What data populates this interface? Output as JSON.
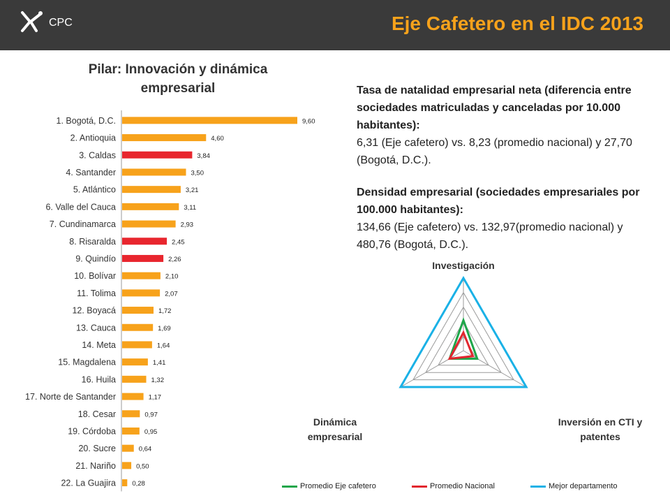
{
  "header": {
    "logo_text": "CPC",
    "title": "Eje Cafetero en el IDC 2013"
  },
  "colors": {
    "header_bg": "#3a3a3a",
    "accent": "#f7a21b",
    "bar_default": "#f7a21b",
    "bar_highlight": "#e8262e",
    "eje": "#1fa64a",
    "nacional": "#e2262e",
    "mejor": "#1ab1e6"
  },
  "info": {
    "natalidad_heading": "Tasa de natalidad empresarial neta (diferencia entre sociedades matriculadas y canceladas por 10.000 habitantes):",
    "natalidad_text": "6,31 (Eje cafetero) vs. 8,23 (promedio nacional) y 27,70 (Bogotá, D.C.).",
    "densidad_heading": "Densidad empresarial (sociedades empresariales por 100.000 habitantes):",
    "densidad_text": "134,66 (Eje cafetero) vs. 132,97(promedio nacional) y 480,76 (Bogotá, D.C.)."
  },
  "chart_data": [
    {
      "type": "bar",
      "orientation": "horizontal",
      "title_line1": "Pilar: Innovación y dinámica",
      "title_line2": "empresarial",
      "categories": [
        "1. Bogotá, D.C.",
        "2. Antioquia",
        "3. Caldas",
        "4. Santander",
        "5. Atlántico",
        "6. Valle del Cauca",
        "7. Cundinamarca",
        "8. Risaralda",
        "9. Quindío",
        "10. Bolívar",
        "11. Tolima",
        "12. Boyacá",
        "13. Cauca",
        "14. Meta",
        "15. Magdalena",
        "16. Huila",
        "17. Norte de Santander",
        "18. Cesar",
        "19. Córdoba",
        "20. Sucre",
        "21. Nariño",
        "22. La Guajira"
      ],
      "values": [
        9.6,
        4.6,
        3.84,
        3.5,
        3.21,
        3.11,
        2.93,
        2.45,
        2.26,
        2.1,
        2.07,
        1.72,
        1.69,
        1.64,
        1.41,
        1.32,
        1.17,
        0.97,
        0.95,
        0.64,
        0.5,
        0.28
      ],
      "labels": [
        "9,60",
        "4,60",
        "3,84",
        "3,50",
        "3,21",
        "3,11",
        "2,93",
        "2,45",
        "2,26",
        "2,10",
        "2,07",
        "1,72",
        "1,69",
        "1,64",
        "1,41",
        "1,32",
        "1,17",
        "0,97",
        "0,95",
        "0,64",
        "0,50",
        "0,28"
      ],
      "highlighted": [
        false,
        false,
        true,
        false,
        false,
        false,
        false,
        true,
        true,
        false,
        false,
        false,
        false,
        false,
        false,
        false,
        false,
        false,
        false,
        false,
        false,
        false
      ],
      "xlim": [
        0,
        10
      ]
    },
    {
      "type": "radar",
      "axes": [
        "Investigación",
        "Inversión en CTI y patentes",
        "Dinámica empresarial"
      ],
      "axis_label_lines": [
        [
          "Investigación"
        ],
        [
          "Inversión en CTI y",
          "patentes"
        ],
        [
          "Dinámica",
          "empresarial"
        ]
      ],
      "rlim": [
        0,
        10
      ],
      "rings": 5,
      "series": [
        {
          "name": "Promedio Eje cafetero",
          "values": [
            4.2,
            2.2,
            2.2
          ]
        },
        {
          "name": "Promedio Nacional",
          "values": [
            2.5,
            1.5,
            2.2
          ]
        },
        {
          "name": "Mejor departamento",
          "values": [
            10,
            10,
            10
          ]
        }
      ]
    }
  ]
}
